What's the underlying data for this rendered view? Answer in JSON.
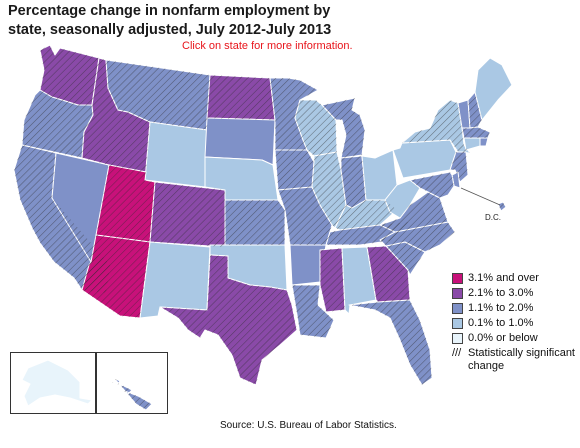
{
  "title": "Percentage change in nonfarm employment by state, seasonally adjusted, July 2012-July 2013",
  "instruction": "Click on state for more information.",
  "dc_label": "D.C.",
  "source": "Source:  U.S. Bureau of Labor Statistics.",
  "colors": {
    "c5": "#c8117a",
    "c4": "#8a4aa8",
    "c3": "#7f91c8",
    "c2": "#aac8e4",
    "c1": "#e8f4fb",
    "border": "#ffffff",
    "outline": "#333333"
  },
  "legend": {
    "items": [
      {
        "label": "3.1% and over",
        "color": "#c8117a"
      },
      {
        "label": "2.1% to 3.0%",
        "color": "#8a4aa8"
      },
      {
        "label": "1.1% to 2.0%",
        "color": "#7f91c8"
      },
      {
        "label": "0.1% to 1.0%",
        "color": "#aac8e4"
      },
      {
        "label": "0.0% or below",
        "color": "#e8f4fb"
      }
    ],
    "significant_mark": "///",
    "significant_label": "Statistically significant change"
  },
  "states": [
    {
      "id": "WA",
      "cls": "c4",
      "sig": true
    },
    {
      "id": "OR",
      "cls": "c3",
      "sig": true
    },
    {
      "id": "CA",
      "cls": "c3",
      "sig": true
    },
    {
      "id": "NV",
      "cls": "c3",
      "sig": false
    },
    {
      "id": "ID",
      "cls": "c4",
      "sig": true
    },
    {
      "id": "MT",
      "cls": "c3",
      "sig": true
    },
    {
      "id": "WY",
      "cls": "c2",
      "sig": false
    },
    {
      "id": "UT",
      "cls": "c5",
      "sig": true
    },
    {
      "id": "AZ",
      "cls": "c5",
      "sig": true
    },
    {
      "id": "CO",
      "cls": "c4",
      "sig": true
    },
    {
      "id": "NM",
      "cls": "c2",
      "sig": false
    },
    {
      "id": "ND",
      "cls": "c4",
      "sig": true
    },
    {
      "id": "SD",
      "cls": "c3",
      "sig": false
    },
    {
      "id": "NE",
      "cls": "c2",
      "sig": false
    },
    {
      "id": "KS",
      "cls": "c3",
      "sig": true
    },
    {
      "id": "OK",
      "cls": "c2",
      "sig": false
    },
    {
      "id": "TX",
      "cls": "c4",
      "sig": true
    },
    {
      "id": "MN",
      "cls": "c3",
      "sig": true
    },
    {
      "id": "IA",
      "cls": "c3",
      "sig": true
    },
    {
      "id": "MO",
      "cls": "c3",
      "sig": true
    },
    {
      "id": "AR",
      "cls": "c3",
      "sig": false
    },
    {
      "id": "LA",
      "cls": "c3",
      "sig": true
    },
    {
      "id": "WI",
      "cls": "c2",
      "sig": true
    },
    {
      "id": "IL",
      "cls": "c2",
      "sig": true
    },
    {
      "id": "MI",
      "cls": "c3",
      "sig": true
    },
    {
      "id": "IN",
      "cls": "c3",
      "sig": true
    },
    {
      "id": "OH",
      "cls": "c2",
      "sig": false
    },
    {
      "id": "KY",
      "cls": "c2",
      "sig": true
    },
    {
      "id": "TN",
      "cls": "c3",
      "sig": true
    },
    {
      "id": "MS",
      "cls": "c4",
      "sig": true
    },
    {
      "id": "AL",
      "cls": "c2",
      "sig": false
    },
    {
      "id": "GA",
      "cls": "c4",
      "sig": true
    },
    {
      "id": "FL",
      "cls": "c3",
      "sig": true
    },
    {
      "id": "SC",
      "cls": "c3",
      "sig": true
    },
    {
      "id": "NC",
      "cls": "c3",
      "sig": true
    },
    {
      "id": "VA",
      "cls": "c3",
      "sig": true
    },
    {
      "id": "WV",
      "cls": "c2",
      "sig": false
    },
    {
      "id": "PA",
      "cls": "c2",
      "sig": false
    },
    {
      "id": "NY",
      "cls": "c2",
      "sig": true
    },
    {
      "id": "VT",
      "cls": "c3",
      "sig": false
    },
    {
      "id": "NH",
      "cls": "c3",
      "sig": true
    },
    {
      "id": "ME",
      "cls": "c2",
      "sig": false
    },
    {
      "id": "MA",
      "cls": "c3",
      "sig": true
    },
    {
      "id": "RI",
      "cls": "c3",
      "sig": false
    },
    {
      "id": "CT",
      "cls": "c2",
      "sig": false
    },
    {
      "id": "NJ",
      "cls": "c3",
      "sig": true
    },
    {
      "id": "DE",
      "cls": "c3",
      "sig": false
    },
    {
      "id": "MD",
      "cls": "c3",
      "sig": true
    },
    {
      "id": "DC",
      "cls": "c3",
      "sig": true
    },
    {
      "id": "AK",
      "cls": "c1",
      "sig": false
    },
    {
      "id": "HI",
      "cls": "c3",
      "sig": true
    }
  ]
}
